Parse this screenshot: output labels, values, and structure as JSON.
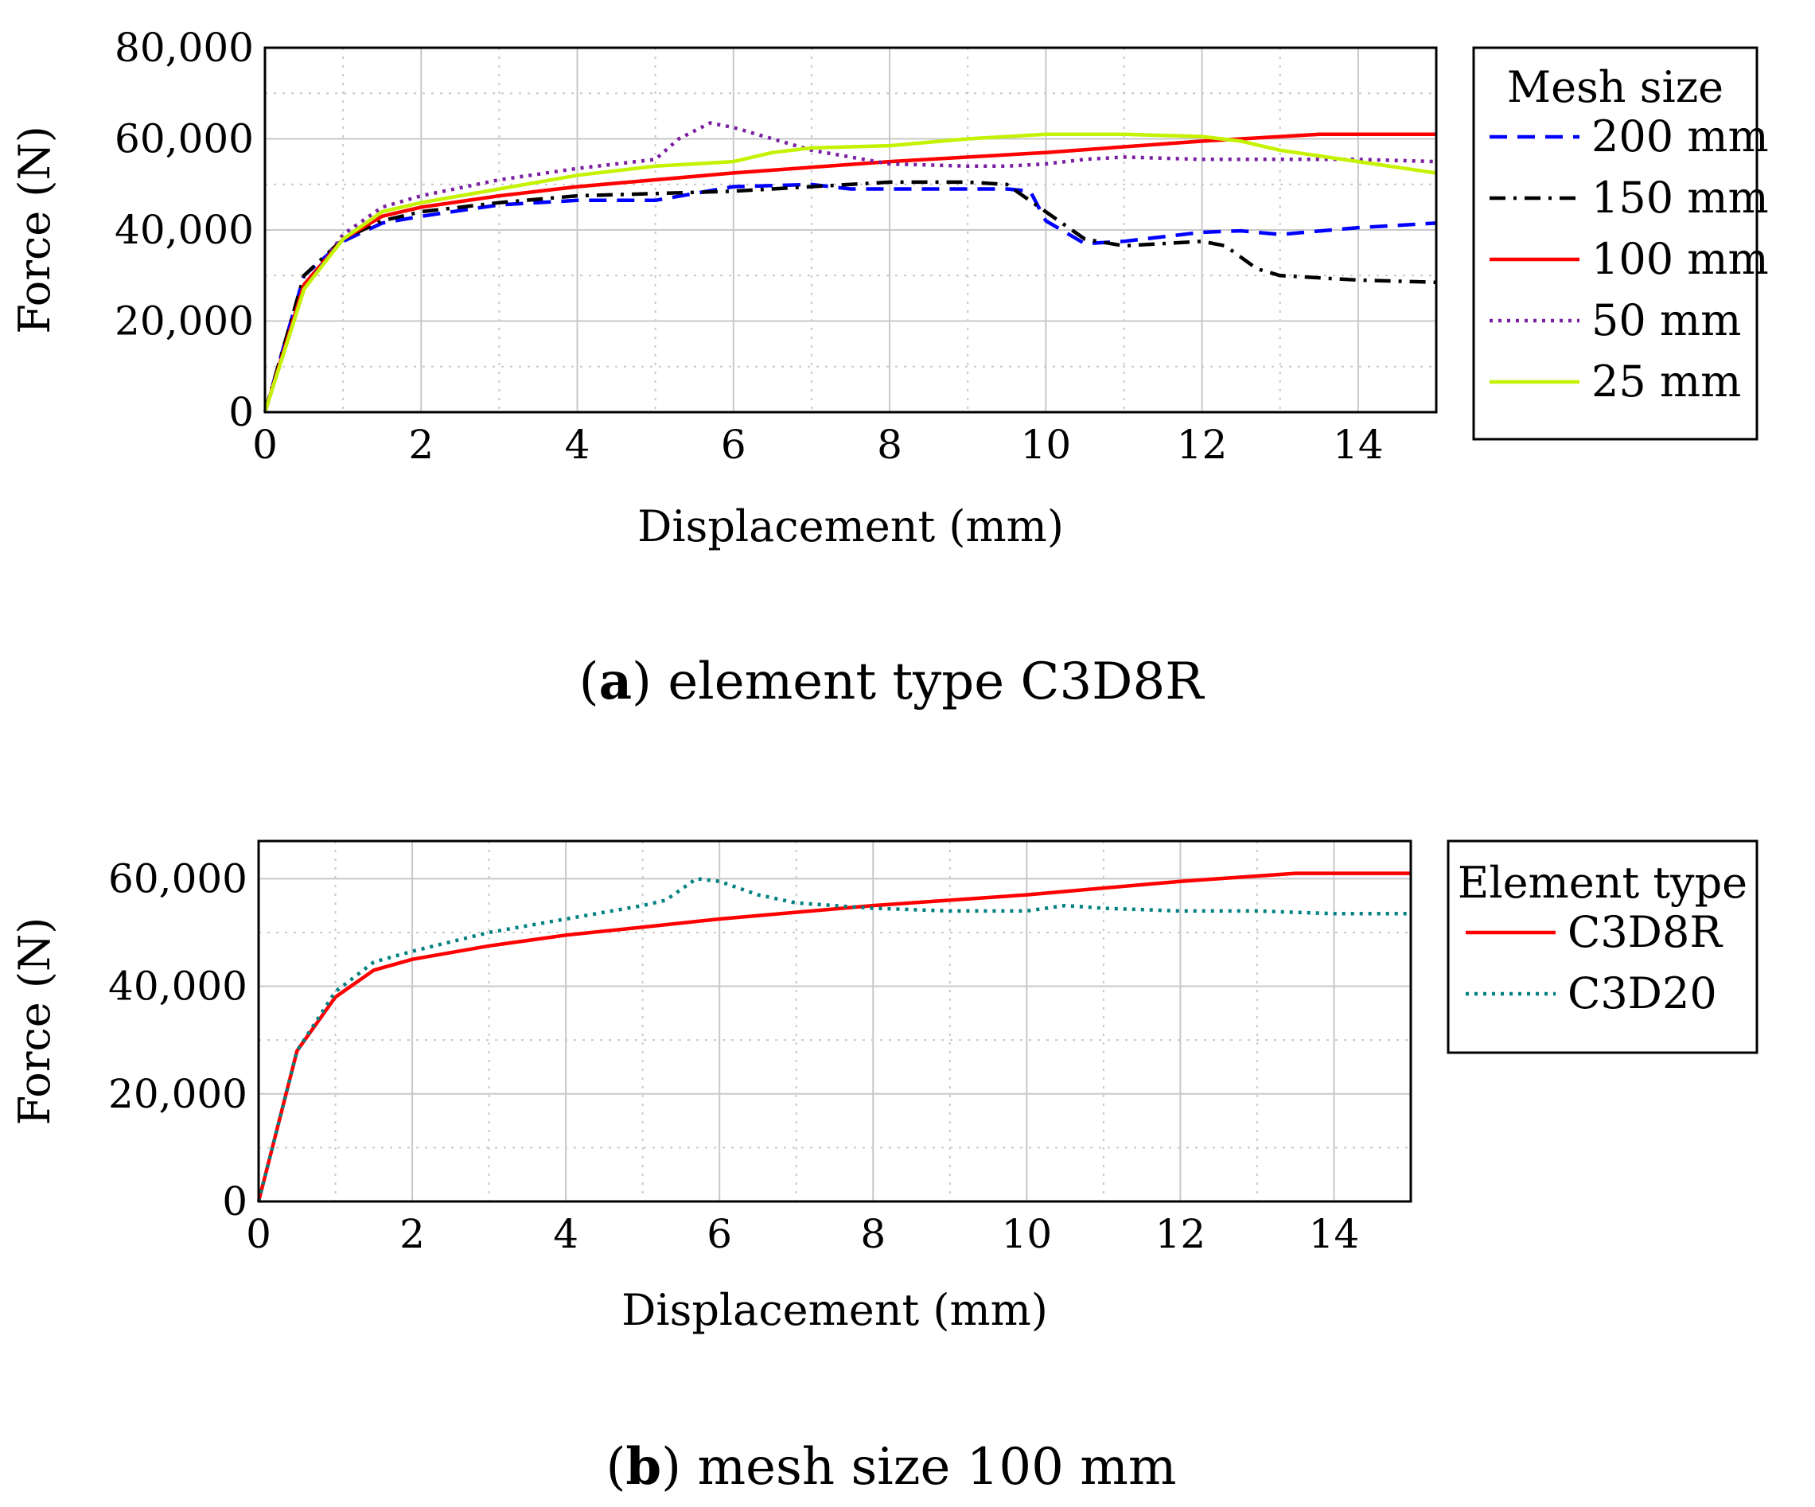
{
  "chart_data": [
    {
      "type": "line",
      "xlabel": "Displacement (mm)",
      "ylabel": "Force (N)",
      "xlim": [
        0,
        15
      ],
      "ylim": [
        0,
        80000
      ],
      "xticks": [
        0,
        2,
        4,
        6,
        8,
        10,
        12,
        14
      ],
      "xtick_labels": [
        "0",
        "2",
        "4",
        "6",
        "8",
        "10",
        "12",
        "14"
      ],
      "yticks": [
        0,
        20000,
        40000,
        60000,
        80000
      ],
      "ytick_labels": [
        "0",
        "20,000",
        "40,000",
        "60,000",
        "80,000"
      ],
      "grid": true,
      "legend_title": "Mesh size",
      "legend_position": "outside-right",
      "caption_label": "a",
      "caption_text": " element type C3D8R",
      "series": [
        {
          "name": "200 mm",
          "color": "#0000ff",
          "dash": "dashed",
          "x": [
            0,
            0.5,
            1,
            1.5,
            2,
            3,
            4,
            5,
            5.5,
            6,
            7,
            7.5,
            8,
            9,
            9.5,
            9.8,
            10,
            10.5,
            11,
            12,
            12.5,
            13,
            14,
            15
          ],
          "y": [
            0,
            30000,
            37500,
            41500,
            43000,
            45500,
            46500,
            46500,
            48000,
            49500,
            50000,
            49000,
            49000,
            49000,
            49000,
            48500,
            42000,
            37000,
            37500,
            39500,
            39800,
            39000,
            40500,
            41500
          ]
        },
        {
          "name": "150 mm",
          "color": "#000000",
          "dash": "dashdot",
          "x": [
            0,
            0.5,
            1,
            1.5,
            2,
            3,
            4,
            5,
            6,
            7,
            8,
            9,
            9.5,
            10,
            10.5,
            11,
            12,
            12.3,
            12.7,
            13,
            14,
            15
          ],
          "y": [
            0,
            30000,
            38000,
            42000,
            44000,
            46000,
            47500,
            48000,
            48500,
            49500,
            50500,
            50500,
            50000,
            44000,
            38000,
            36500,
            37500,
            36500,
            31500,
            30000,
            29000,
            28500
          ]
        },
        {
          "name": "100 mm",
          "color": "#ff0000",
          "dash": "solid",
          "x": [
            0,
            0.5,
            1,
            1.5,
            2,
            3,
            4,
            5,
            6,
            8,
            10,
            12,
            13.5,
            14,
            15
          ],
          "y": [
            0,
            28000,
            38000,
            43000,
            45000,
            47500,
            49500,
            51000,
            52500,
            55000,
            57000,
            59500,
            61000,
            61000,
            61000
          ]
        },
        {
          "name": "50 mm",
          "color": "#7a1fa2",
          "dash": "dotted",
          "x": [
            0,
            0.5,
            1,
            1.5,
            2,
            3,
            4,
            5,
            5.3,
            5.7,
            6,
            6.5,
            7,
            8,
            9,
            9.5,
            10,
            10.5,
            11,
            12,
            13,
            14,
            15
          ],
          "y": [
            0,
            27000,
            39000,
            45000,
            47500,
            51000,
            53500,
            55500,
            60000,
            63500,
            62500,
            60000,
            57500,
            54500,
            54000,
            54000,
            54500,
            55500,
            56000,
            55500,
            55500,
            55500,
            55000
          ]
        },
        {
          "name": "25 mm",
          "color": "#c4f200",
          "dash": "solid",
          "x": [
            0,
            0.5,
            1,
            1.5,
            2,
            3,
            4,
            5,
            6,
            6.5,
            7,
            8,
            9,
            9.5,
            10,
            11,
            12,
            12.5,
            13,
            14,
            15
          ],
          "y": [
            0,
            27000,
            38000,
            44000,
            46000,
            49000,
            52000,
            54000,
            55000,
            57000,
            58000,
            58500,
            60000,
            60500,
            61000,
            61000,
            60500,
            59500,
            57500,
            55000,
            52500
          ]
        }
      ]
    },
    {
      "type": "line",
      "xlabel": "Displacement (mm)",
      "ylabel": "Force (N)",
      "xlim": [
        0,
        15
      ],
      "ylim": [
        0,
        67000
      ],
      "xticks": [
        0,
        2,
        4,
        6,
        8,
        10,
        12,
        14
      ],
      "xtick_labels": [
        "0",
        "2",
        "4",
        "6",
        "8",
        "10",
        "12",
        "14"
      ],
      "yticks": [
        0,
        20000,
        40000,
        60000
      ],
      "ytick_labels": [
        "0",
        "20,000",
        "40,000",
        "60,000"
      ],
      "grid": true,
      "legend_title": "Element type",
      "legend_position": "outside-right",
      "caption_label": "b",
      "caption_text": " mesh size 100 mm",
      "series": [
        {
          "name": "C3D8R",
          "color": "#ff0000",
          "dash": "solid",
          "x": [
            0,
            0.5,
            1,
            1.5,
            2,
            3,
            4,
            5,
            6,
            8,
            10,
            12,
            13.5,
            14,
            15
          ],
          "y": [
            0,
            28000,
            38000,
            43000,
            45000,
            47500,
            49500,
            51000,
            52500,
            55000,
            57000,
            59500,
            61000,
            61000,
            61000
          ]
        },
        {
          "name": "C3D20",
          "color": "#008080",
          "dash": "dotted",
          "x": [
            0,
            0.5,
            1,
            1.5,
            2,
            3,
            4,
            5,
            5.3,
            5.7,
            6,
            6.5,
            7,
            8,
            9,
            10,
            10.5,
            11,
            12,
            13,
            14,
            15
          ],
          "y": [
            0,
            28000,
            39000,
            44500,
            46500,
            50000,
            52500,
            55000,
            56000,
            60000,
            59500,
            57000,
            55500,
            54500,
            54000,
            54000,
            55000,
            54500,
            54000,
            54000,
            53500,
            53500
          ]
        }
      ]
    }
  ]
}
